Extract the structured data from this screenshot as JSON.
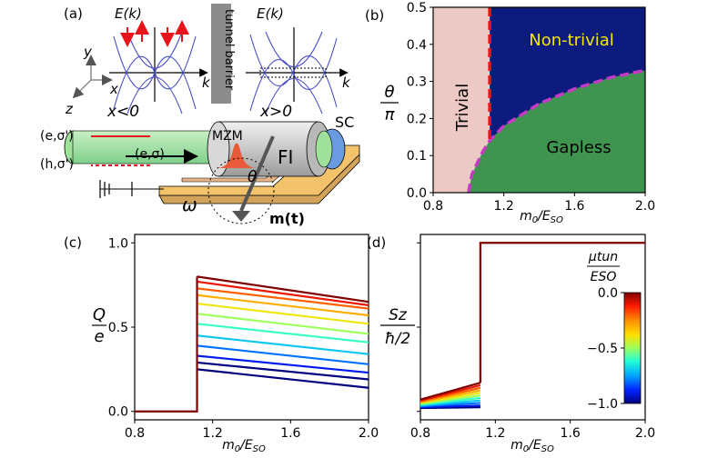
{
  "panel_labels": {
    "a": "(a)",
    "b": "(b)",
    "c": "(c)",
    "d": "(d)"
  },
  "schematic": {
    "energy_label_left": "E(k)",
    "energy_label_right": "E(k)",
    "k_label_left": "k",
    "k_label_right": "k",
    "barrier_label": "tunnel barrier",
    "region_left": "x<0",
    "region_right": "x>0",
    "axis_x": "x",
    "axis_y": "y",
    "axis_z": "z",
    "mzm_label": "MZM",
    "fi_label": "FI",
    "sc_label": "SC",
    "incoming_electron": "(e,σ')",
    "reflected_electron": "(e,σ)",
    "reflected_hole": "(h,σ')",
    "omega_label": "ω",
    "theta_label": "θ",
    "magnet_label": "m(t)"
  },
  "colors": {
    "trivial": "#ecc9c4",
    "nontrivial": "#0d1a7e",
    "gapless": "#3f9450",
    "nontrivial_text": "#f5e800",
    "boundary_red": "#e8141c",
    "boundary_magenta": "#c43ac4",
    "dispersion": "#4a50c8"
  },
  "chart_data": [
    {
      "panel": "b",
      "type": "heatmap",
      "xlabel": "m0/ESO",
      "ylabel": "θ/π",
      "xlim": [
        0.8,
        2.0
      ],
      "ylim": [
        0.0,
        0.5
      ],
      "x_ticks": [
        "0.8",
        "1.2",
        "1.6",
        "2.0"
      ],
      "y_ticks": [
        "0.0",
        "0.1",
        "0.2",
        "0.3",
        "0.4",
        "0.5"
      ],
      "regions": [
        "Trivial",
        "Non-trivial",
        "Gapless"
      ],
      "trivial_boundary_x": 1.12,
      "gapless_boundary": {
        "x": [
          1.0,
          1.02,
          1.05,
          1.08,
          1.12,
          1.2,
          1.3,
          1.4,
          1.5,
          1.6,
          1.7,
          1.8,
          1.9,
          2.0
        ],
        "y": [
          0.0,
          0.05,
          0.08,
          0.11,
          0.14,
          0.18,
          0.21,
          0.24,
          0.26,
          0.28,
          0.295,
          0.31,
          0.32,
          0.33
        ]
      }
    },
    {
      "panel": "c",
      "type": "line",
      "ylabel_num": "Q",
      "ylabel_den": "e",
      "xlabel": "m0/ESO",
      "xlim": [
        0.8,
        2.0
      ],
      "ylim": [
        -0.05,
        1.05
      ],
      "x_ticks": [
        "0.8",
        "1.2",
        "1.6",
        "2.0"
      ],
      "y_ticks": [
        "0.0",
        "0.5",
        "1.0"
      ],
      "step_x": 1.12,
      "series": [
        {
          "mu": 0.0,
          "y_start": 0.8,
          "y_end": 0.65
        },
        {
          "mu": -0.1,
          "y_start": 0.77,
          "y_end": 0.63
        },
        {
          "mu": -0.2,
          "y_start": 0.73,
          "y_end": 0.61
        },
        {
          "mu": -0.3,
          "y_start": 0.69,
          "y_end": 0.57
        },
        {
          "mu": -0.4,
          "y_start": 0.64,
          "y_end": 0.52
        },
        {
          "mu": -0.5,
          "y_start": 0.58,
          "y_end": 0.46
        },
        {
          "mu": -0.6,
          "y_start": 0.52,
          "y_end": 0.41
        },
        {
          "mu": -0.7,
          "y_start": 0.45,
          "y_end": 0.34
        },
        {
          "mu": -0.8,
          "y_start": 0.39,
          "y_end": 0.28
        },
        {
          "mu": -0.9,
          "y_start": 0.33,
          "y_end": 0.23
        },
        {
          "mu": -1.0,
          "y_start": 0.29,
          "y_end": 0.19
        },
        {
          "mu": -1.05,
          "y_start": 0.25,
          "y_end": 0.14
        }
      ]
    },
    {
      "panel": "d",
      "type": "line",
      "ylabel_num": "Sz",
      "ylabel_den": "ħ/2",
      "xlabel": "m0/ESO",
      "xlim": [
        0.8,
        2.0
      ],
      "ylim": [
        -0.05,
        1.05
      ],
      "x_ticks": [
        "0.8",
        "1.2",
        "1.6",
        "2.0"
      ],
      "step_x": 1.12,
      "plateau": 1.0,
      "series": [
        {
          "mu": 0.0,
          "y_start": 0.07,
          "y_end": 0.17
        },
        {
          "mu": -0.1,
          "y_start": 0.065,
          "y_end": 0.155
        },
        {
          "mu": -0.2,
          "y_start": 0.06,
          "y_end": 0.14
        },
        {
          "mu": -0.3,
          "y_start": 0.055,
          "y_end": 0.125
        },
        {
          "mu": -0.4,
          "y_start": 0.05,
          "y_end": 0.11
        },
        {
          "mu": -0.5,
          "y_start": 0.045,
          "y_end": 0.095
        },
        {
          "mu": -0.6,
          "y_start": 0.04,
          "y_end": 0.08
        },
        {
          "mu": -0.7,
          "y_start": 0.035,
          "y_end": 0.065
        },
        {
          "mu": -0.8,
          "y_start": 0.03,
          "y_end": 0.05
        },
        {
          "mu": -0.9,
          "y_start": 0.025,
          "y_end": 0.035
        },
        {
          "mu": -1.0,
          "y_start": 0.02,
          "y_end": 0.025
        }
      ],
      "colorbar": {
        "label_num": "μtun",
        "label_den": "ESO",
        "min": -1.0,
        "max": 0.0,
        "ticks": [
          "0.0",
          "−0.5",
          "−1.0"
        ]
      }
    }
  ]
}
